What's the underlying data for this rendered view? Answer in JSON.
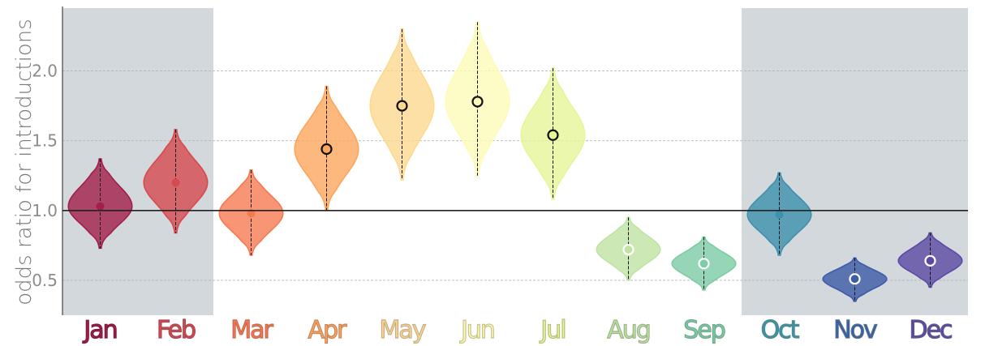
{
  "chart_data": {
    "type": "violin",
    "title": "",
    "xlabel": "",
    "ylabel": "odds ratio for introductions",
    "ylim": [
      0.25,
      2.45
    ],
    "yticks": [
      0.5,
      1.0,
      1.5,
      2.0
    ],
    "ytick_labels": [
      "0.5",
      "1.0",
      "1.5",
      "2.0"
    ],
    "reference_line": 1.0,
    "grid": "horizontal dashed",
    "categories": [
      "Jan",
      "Feb",
      "Mar",
      "Apr",
      "May",
      "Jun",
      "Jul",
      "Aug",
      "Sep",
      "Oct",
      "Nov",
      "Dec"
    ],
    "shaded_categories": [
      "Jan",
      "Feb",
      "Oct",
      "Nov",
      "Dec"
    ],
    "medians": [
      1.03,
      1.2,
      0.98,
      1.44,
      1.75,
      1.78,
      1.54,
      0.72,
      0.62,
      0.97,
      0.51,
      0.64
    ],
    "min": [
      0.73,
      0.84,
      0.68,
      1.0,
      1.22,
      1.25,
      1.08,
      0.5,
      0.43,
      0.68,
      0.35,
      0.45
    ],
    "max": [
      1.37,
      1.58,
      1.29,
      1.89,
      2.3,
      2.35,
      2.02,
      0.95,
      0.81,
      1.27,
      0.66,
      0.84
    ],
    "median_marker": [
      "filled",
      "filled",
      "filled",
      "open",
      "open",
      "open",
      "open",
      "open-white",
      "open-white",
      "filled",
      "open-white",
      "open-white"
    ],
    "colors": [
      "#a11f4a",
      "#d64a4f",
      "#f57a52",
      "#fca65c",
      "#fdd88f",
      "#fefbb8",
      "#e6f598",
      "#bfe3a3",
      "#7ccca5",
      "#3d91ac",
      "#3c5ba8",
      "#5b4aa3"
    ],
    "label_colors": [
      "#7d1637",
      "#a8474f",
      "#c8684d",
      "#c8855a",
      "#c8ab82",
      "#c6c488",
      "#b8c07a",
      "#9bb487",
      "#6fa98c",
      "#4a8b8c",
      "#4f6f8e",
      "#61538b"
    ]
  }
}
